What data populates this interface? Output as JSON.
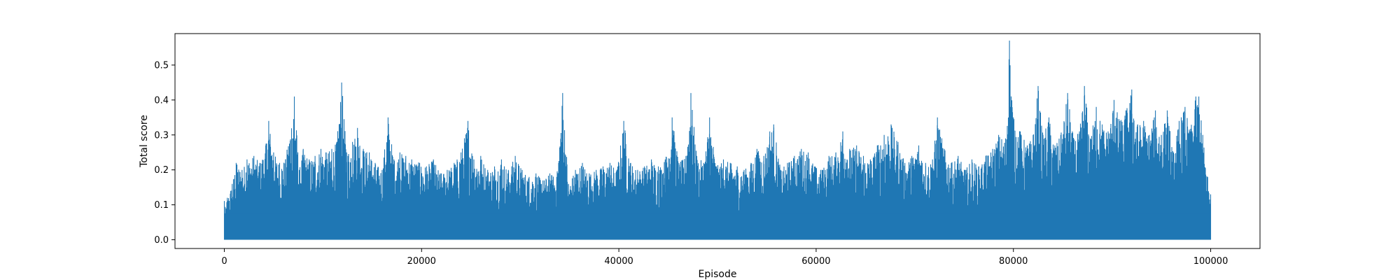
{
  "chart_data": {
    "type": "line",
    "title": "",
    "xlabel": "Episode",
    "ylabel": "Total score",
    "xlim": [
      -5000,
      105000
    ],
    "ylim": [
      -0.025,
      0.59
    ],
    "x_ticks": [
      0,
      20000,
      40000,
      60000,
      80000,
      100000
    ],
    "x_tick_labels": [
      "0",
      "20000",
      "40000",
      "60000",
      "80000",
      "100000"
    ],
    "y_ticks": [
      0.0,
      0.1,
      0.2,
      0.3,
      0.4,
      0.5
    ],
    "y_tick_labels": [
      "0.0",
      "0.1",
      "0.2",
      "0.3",
      "0.4",
      "0.5"
    ],
    "grid": false,
    "legend": "none",
    "series": [
      {
        "color": "#1f77b4",
        "x_range": [
          0,
          100000
        ],
        "baseline": 0.0,
        "note_values": "dense noisy series; sampled peak envelope below (episode, peak score)",
        "peaks": [
          [
            0,
            0.08
          ],
          [
            300,
            0.12
          ],
          [
            800,
            0.16
          ],
          [
            1200,
            0.22
          ],
          [
            1800,
            0.2
          ],
          [
            2300,
            0.23
          ],
          [
            3000,
            0.24
          ],
          [
            3600,
            0.22
          ],
          [
            4200,
            0.27
          ],
          [
            4500,
            0.34
          ],
          [
            5000,
            0.25
          ],
          [
            5600,
            0.22
          ],
          [
            6200,
            0.23
          ],
          [
            7100,
            0.41
          ],
          [
            7600,
            0.2
          ],
          [
            8000,
            0.26
          ],
          [
            8600,
            0.23
          ],
          [
            9200,
            0.24
          ],
          [
            9800,
            0.26
          ],
          [
            10300,
            0.25
          ],
          [
            10900,
            0.26
          ],
          [
            11400,
            0.28
          ],
          [
            11900,
            0.45
          ],
          [
            12400,
            0.25
          ],
          [
            13000,
            0.28
          ],
          [
            13500,
            0.32
          ],
          [
            14100,
            0.26
          ],
          [
            14700,
            0.25
          ],
          [
            15300,
            0.22
          ],
          [
            16000,
            0.2
          ],
          [
            16600,
            0.35
          ],
          [
            17200,
            0.23
          ],
          [
            17800,
            0.25
          ],
          [
            18400,
            0.24
          ],
          [
            19000,
            0.23
          ],
          [
            19800,
            0.22
          ],
          [
            20500,
            0.21
          ],
          [
            21200,
            0.23
          ],
          [
            21900,
            0.19
          ],
          [
            22600,
            0.2
          ],
          [
            23300,
            0.22
          ],
          [
            24000,
            0.25
          ],
          [
            24700,
            0.34
          ],
          [
            25300,
            0.23
          ],
          [
            26000,
            0.24
          ],
          [
            26700,
            0.2
          ],
          [
            27400,
            0.21
          ],
          [
            28100,
            0.23
          ],
          [
            28800,
            0.2
          ],
          [
            29500,
            0.24
          ],
          [
            30200,
            0.2
          ],
          [
            30900,
            0.18
          ],
          [
            31600,
            0.19
          ],
          [
            32300,
            0.17
          ],
          [
            33000,
            0.19
          ],
          [
            33700,
            0.18
          ],
          [
            34300,
            0.42
          ],
          [
            34900,
            0.16
          ],
          [
            35600,
            0.2
          ],
          [
            36300,
            0.22
          ],
          [
            37000,
            0.19
          ],
          [
            37700,
            0.2
          ],
          [
            38400,
            0.21
          ],
          [
            39100,
            0.22
          ],
          [
            39800,
            0.2
          ],
          [
            40500,
            0.34
          ],
          [
            41200,
            0.22
          ],
          [
            41900,
            0.2
          ],
          [
            42600,
            0.21
          ],
          [
            43300,
            0.23
          ],
          [
            44000,
            0.21
          ],
          [
            44700,
            0.23
          ],
          [
            45400,
            0.35
          ],
          [
            46100,
            0.22
          ],
          [
            46800,
            0.24
          ],
          [
            47300,
            0.42
          ],
          [
            47900,
            0.24
          ],
          [
            48600,
            0.22
          ],
          [
            49200,
            0.35
          ],
          [
            49900,
            0.21
          ],
          [
            50600,
            0.23
          ],
          [
            51300,
            0.22
          ],
          [
            52000,
            0.21
          ],
          [
            52700,
            0.2
          ],
          [
            53400,
            0.22
          ],
          [
            54000,
            0.26
          ],
          [
            54700,
            0.24
          ],
          [
            55300,
            0.31
          ],
          [
            55700,
            0.33
          ],
          [
            56400,
            0.2
          ],
          [
            57100,
            0.22
          ],
          [
            57800,
            0.24
          ],
          [
            58500,
            0.26
          ],
          [
            59200,
            0.25
          ],
          [
            59900,
            0.21
          ],
          [
            60600,
            0.2
          ],
          [
            61300,
            0.24
          ],
          [
            62000,
            0.25
          ],
          [
            62700,
            0.31
          ],
          [
            63400,
            0.26
          ],
          [
            64100,
            0.27
          ],
          [
            64800,
            0.24
          ],
          [
            65500,
            0.23
          ],
          [
            66200,
            0.27
          ],
          [
            66900,
            0.3
          ],
          [
            67600,
            0.33
          ],
          [
            68300,
            0.28
          ],
          [
            69000,
            0.22
          ],
          [
            69700,
            0.24
          ],
          [
            70400,
            0.27
          ],
          [
            71100,
            0.22
          ],
          [
            71800,
            0.23
          ],
          [
            72300,
            0.35
          ],
          [
            73000,
            0.26
          ],
          [
            73700,
            0.22
          ],
          [
            74400,
            0.24
          ],
          [
            75100,
            0.2
          ],
          [
            75800,
            0.23
          ],
          [
            76500,
            0.21
          ],
          [
            77200,
            0.24
          ],
          [
            77900,
            0.26
          ],
          [
            78500,
            0.3
          ],
          [
            79200,
            0.29
          ],
          [
            79600,
            0.57
          ],
          [
            80000,
            0.35
          ],
          [
            80700,
            0.31
          ],
          [
            81400,
            0.27
          ],
          [
            82000,
            0.3
          ],
          [
            82500,
            0.44
          ],
          [
            83000,
            0.3
          ],
          [
            83600,
            0.35
          ],
          [
            84200,
            0.27
          ],
          [
            84800,
            0.3
          ],
          [
            85500,
            0.42
          ],
          [
            86100,
            0.29
          ],
          [
            86700,
            0.31
          ],
          [
            87200,
            0.44
          ],
          [
            87800,
            0.29
          ],
          [
            88400,
            0.38
          ],
          [
            89000,
            0.33
          ],
          [
            89600,
            0.31
          ],
          [
            90200,
            0.4
          ],
          [
            90800,
            0.34
          ],
          [
            91400,
            0.37
          ],
          [
            92000,
            0.43
          ],
          [
            92600,
            0.33
          ],
          [
            93200,
            0.34
          ],
          [
            93800,
            0.3
          ],
          [
            94400,
            0.37
          ],
          [
            95000,
            0.3
          ],
          [
            95600,
            0.37
          ],
          [
            96200,
            0.25
          ],
          [
            96800,
            0.34
          ],
          [
            97400,
            0.38
          ],
          [
            97900,
            0.31
          ],
          [
            98500,
            0.41
          ],
          [
            98800,
            0.41
          ],
          [
            99200,
            0.3
          ],
          [
            99700,
            0.18
          ],
          [
            100000,
            0.13
          ]
        ]
      }
    ]
  }
}
